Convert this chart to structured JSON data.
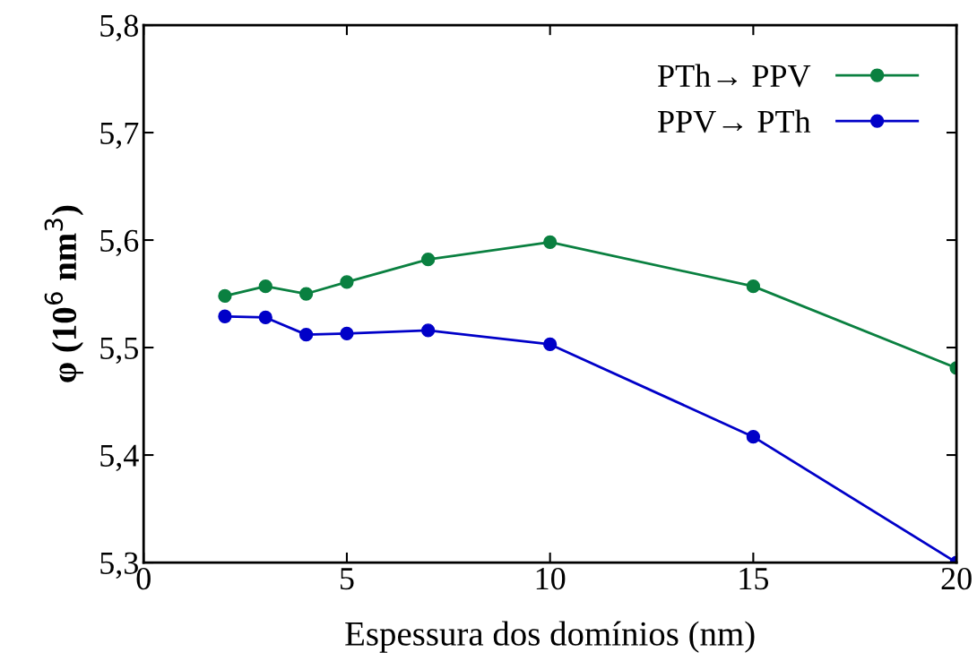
{
  "chart_data": {
    "type": "line",
    "xlabel": "Espessura dos domínios (nm)",
    "ylabel": "φ (10$^{6}$ nm$^{3}$)",
    "x": [
      2,
      3,
      4,
      5,
      7,
      10,
      15,
      20
    ],
    "series": [
      {
        "name": "PTh→ PPV",
        "color": "#0a8040",
        "values": [
          5.548,
          5.557,
          5.55,
          5.561,
          5.582,
          5.598,
          5.557,
          5.481
        ]
      },
      {
        "name": "PPV→ PTh",
        "color": "#0000c8",
        "values": [
          5.529,
          5.528,
          5.512,
          5.513,
          5.516,
          5.503,
          5.417,
          5.3
        ]
      }
    ],
    "xlim": [
      0,
      20
    ],
    "xticks": [
      0,
      5,
      10,
      15,
      20
    ],
    "ylim": [
      5.3,
      5.8
    ],
    "yticks": [
      {
        "value": 5.3,
        "label": "5,3"
      },
      {
        "value": 5.4,
        "label": "5,4"
      },
      {
        "value": 5.5,
        "label": "5,5"
      },
      {
        "value": 5.6,
        "label": "5,6"
      },
      {
        "value": 5.7,
        "label": "5,7"
      },
      {
        "value": 5.8,
        "label": "5,8"
      }
    ],
    "marker": "circle",
    "line_style": "solid",
    "legend": "top right",
    "grid": false
  }
}
